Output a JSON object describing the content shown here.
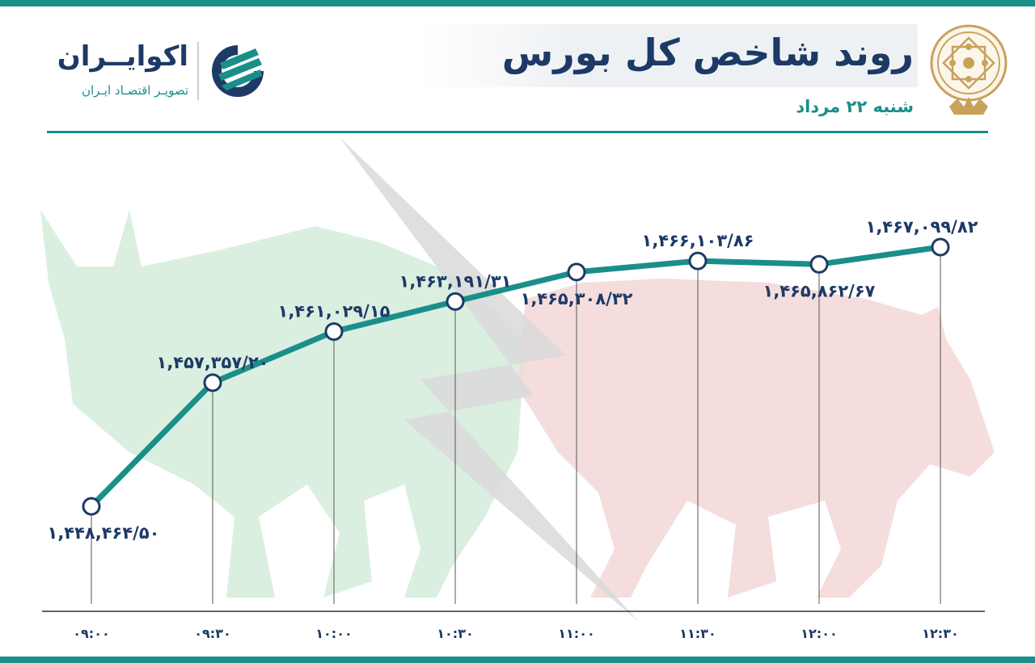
{
  "header": {
    "title": "روند شاخص کل بورس",
    "subtitle": "شنبه ۲۲ مرداد"
  },
  "brand": {
    "name": "اکوایــران",
    "tagline": "تصویـر اقتصـاد ایـران"
  },
  "colors": {
    "accent": "#1a8f8a",
    "text": "#1d3a66",
    "bull": "#cfe9d6",
    "bear": "#f2d4d4",
    "emblem": "#c9a25a"
  },
  "icons": {
    "brand_mark": "striped-circle-logo",
    "emblem": "exchange-emblem"
  },
  "chart_data": {
    "type": "line",
    "x": [
      "09:00",
      "09:30",
      "10:00",
      "10:30",
      "11:00",
      "11:30",
      "12:00",
      "12:30"
    ],
    "x_labels": [
      "۰۹:۰۰",
      "۰۹:۳۰",
      "۱۰:۰۰",
      "۱۰:۳۰",
      "۱۱:۰۰",
      "۱۱:۳۰",
      "۱۲:۰۰",
      "۱۲:۳۰"
    ],
    "values": [
      1448464.5,
      1457357.2,
      1461029.15,
      1463191.31,
      1465308.32,
      1466103.86,
      1465862.67,
      1467099.82
    ],
    "value_labels": [
      "۱,۴۴۸,۴۶۴/۵۰",
      "۱,۴۵۷,۳۵۷/۲۰",
      "۱,۴۶۱,۰۲۹/۱۵",
      "۱,۴۶۳,۱۹۱/۳۱",
      "۱,۴۶۵,۳۰۸/۳۲",
      "۱,۴۶۶,۱۰۳/۸۶",
      "۱,۴۶۵,۸۶۲/۶۷",
      "۱,۴۶۷,۰۹۹/۸۲"
    ],
    "grid": false,
    "legend": "none"
  }
}
